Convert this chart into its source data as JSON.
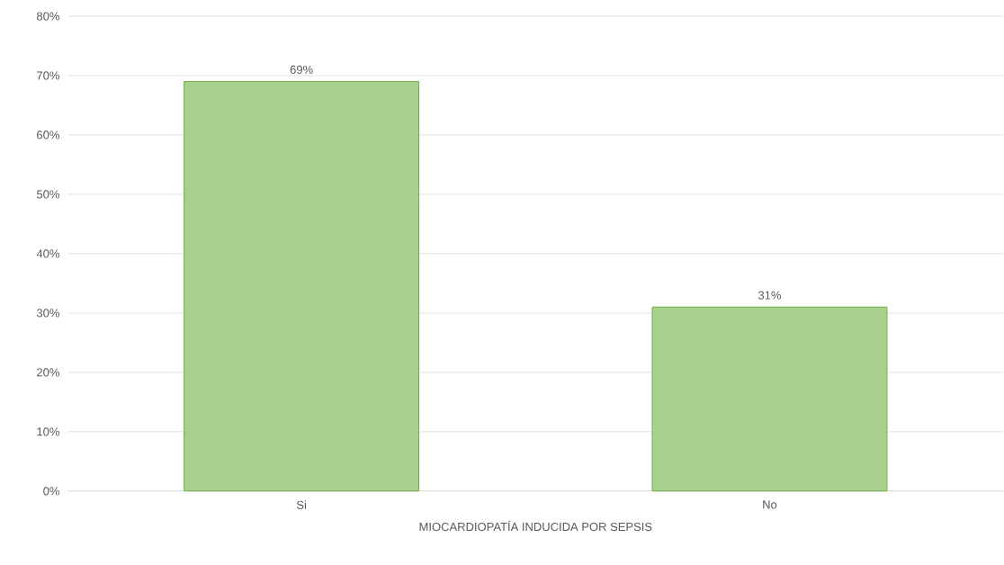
{
  "chart_data": {
    "type": "bar",
    "xlabel": "MIOCARDIOPATÍA INDUCIDA POR SEPSIS",
    "categories": [
      "Si",
      "No"
    ],
    "values": [
      69,
      31
    ],
    "value_labels": [
      "69%",
      "31%"
    ],
    "color": "#a9d18e",
    "ylim": [
      0,
      80
    ],
    "yticks": [
      {
        "value": 0,
        "label": "0%"
      },
      {
        "value": 10,
        "label": "10%"
      },
      {
        "value": 20,
        "label": "20%"
      },
      {
        "value": 30,
        "label": "30%"
      },
      {
        "value": 40,
        "label": "40%"
      },
      {
        "value": 50,
        "label": "50%"
      },
      {
        "value": 60,
        "label": "60%"
      },
      {
        "value": 70,
        "label": "70%"
      },
      {
        "value": 80,
        "label": "80%"
      }
    ],
    "grid": "y"
  }
}
